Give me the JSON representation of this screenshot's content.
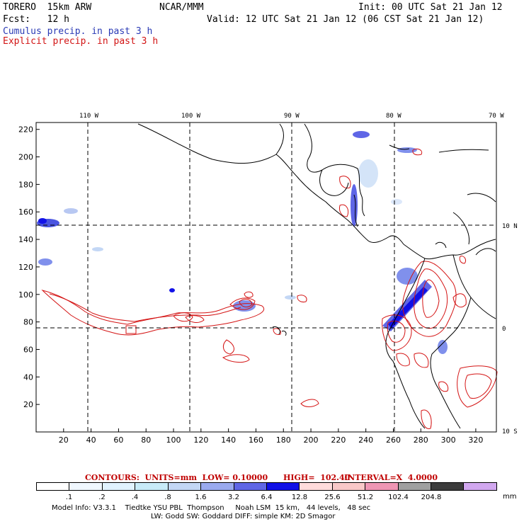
{
  "header": {
    "model": "TORERO  15km ARW",
    "org": "NCAR/MMM",
    "init": "Init: 00 UTC Sat 21 Jan 12",
    "fcst": "Fcst:   12 h",
    "valid": "Valid: 12 UTC Sat 21 Jan 12 (06 CST Sat 21 Jan 12)",
    "field1": "Cumulus precip. in past 3 h",
    "field2": "Explicit precip. in past 3 h"
  },
  "map": {
    "lon_labels": [
      "110 W",
      "100 W",
      "90 W",
      "80 W",
      "70 W"
    ],
    "lat_labels": [
      "10 N",
      "0",
      "10 S"
    ],
    "y_ticks": [
      "220",
      "200",
      "180",
      "160",
      "140",
      "120",
      "100",
      "80",
      "60",
      "40",
      "20"
    ],
    "x_ticks": [
      "20",
      "40",
      "60",
      "80",
      "100",
      "120",
      "140",
      "160",
      "180",
      "200",
      "220",
      "240",
      "260",
      "280",
      "300",
      "320"
    ],
    "grid_range_x": [
      0,
      335
    ],
    "grid_range_y": [
      0,
      225
    ]
  },
  "contours": {
    "units": "CONTOURS:  UNITS=mm  LOW= 0.10000",
    "high": "HIGH=  102.40",
    "interval": "INTERVAL=X  4.0000"
  },
  "legend": {
    "unit": "mm",
    "labels": [
      ".1",
      ".2",
      ".4",
      ".8",
      "1.6",
      "3.2",
      "6.4",
      "12.8",
      "25.6",
      "51.2",
      "102.4",
      "204.8"
    ],
    "colors": [
      "#ffffff",
      "#f0f8ff",
      "#e1f3ff",
      "#c8ebf9",
      "#c3d7f5",
      "#9aaaef",
      "#5f66e6",
      "#1010e6",
      "#ffdcdc",
      "#f9c8c8",
      "#ef96b4",
      "#a0a0a0",
      "#3c3c3c",
      "#d2a8f0"
    ]
  },
  "model_info": {
    "line1": "Model Info: V3.3.1    Tiedtke YSU PBL  Thompson     Noah LSM  15 km,   44 levels,   48 sec",
    "line2": "LW: Godd SW: Goddard DIFF: simple KM: 2D Smagor"
  }
}
